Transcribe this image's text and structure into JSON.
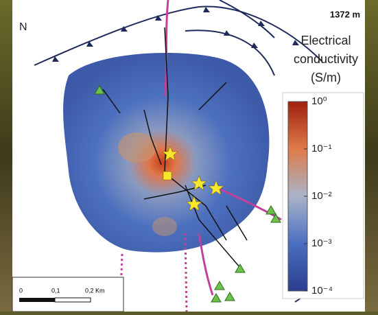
{
  "elevation_label": "1372 m",
  "north_label": "N",
  "colorbar": {
    "title_lines": [
      "Electrical",
      "conductivity",
      "(S/m)"
    ],
    "scale": "log",
    "lim": [
      0.0001,
      1
    ],
    "ticks": [
      {
        "value": 1,
        "label": "10⁰"
      },
      {
        "value": 0.1,
        "label": "10⁻¹"
      },
      {
        "value": 0.01,
        "label": "10⁻²"
      },
      {
        "value": 0.001,
        "label": "10⁻³"
      },
      {
        "value": 0.0001,
        "label": "10⁻⁴"
      }
    ],
    "colors": [
      "#2a3d8f",
      "#4a6fc0",
      "#a9b4c8",
      "#e07a4a",
      "#a0200f"
    ]
  },
  "scale_bar": {
    "labels": [
      "0",
      "0,1",
      "0,2 Km"
    ]
  }
}
